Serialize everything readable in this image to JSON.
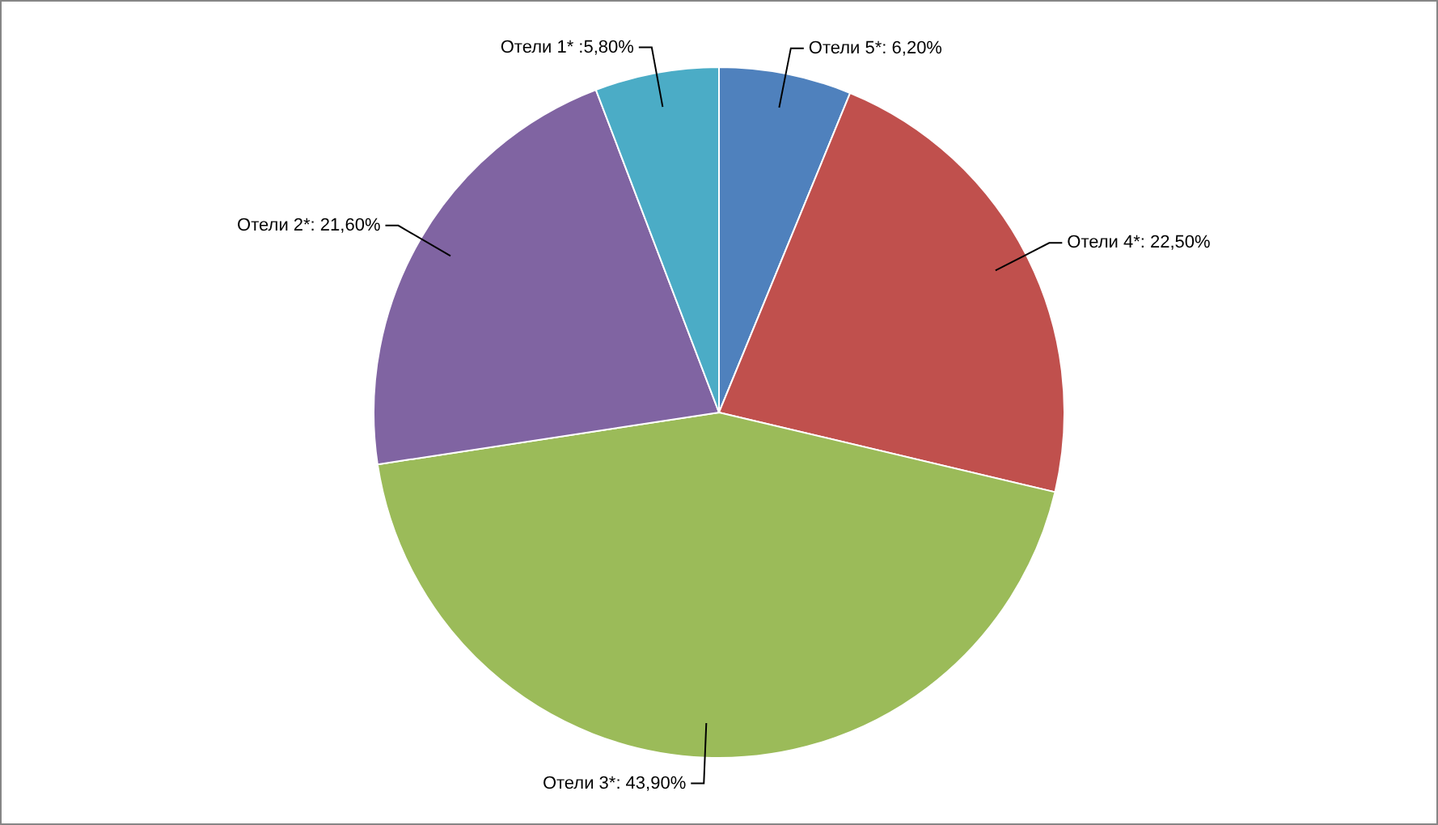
{
  "chart_data": {
    "type": "pie",
    "categories": [
      "Отели 5*: 6,20%",
      "Отели 4*: 22,50%",
      "Отели 3*: 43,90%",
      "Отели 2*: 21,60%",
      "Отели 1* :5,80%"
    ],
    "values": [
      6.2,
      22.5,
      43.9,
      21.6,
      5.8
    ],
    "colors": [
      "#4f81bd",
      "#c0504d",
      "#9bbb59",
      "#8064a2",
      "#4bacc6"
    ]
  }
}
